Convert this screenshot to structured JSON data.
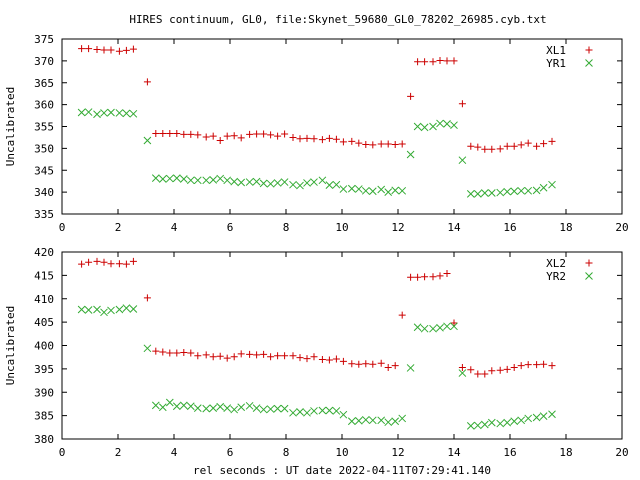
{
  "title": "HIRES continuum, GL0, file:Skynet_59680_GL0_78202_26985.cyb.txt",
  "colors": {
    "series1": "#cc0000",
    "series2": "#33aa33"
  },
  "chart_data": [
    {
      "type": "scatter",
      "ylabel": "Uncalibrated",
      "xlim": [
        0,
        20
      ],
      "ylim": [
        335,
        375
      ],
      "xticks": [
        "0",
        "2",
        "4",
        "6",
        "8",
        "10",
        "12",
        "14",
        "16",
        "18",
        "20"
      ],
      "yticks": [
        "335",
        "340",
        "345",
        "350",
        "355",
        "360",
        "365",
        "370",
        "375"
      ],
      "legend_position": "top-right",
      "series": [
        {
          "name": "XL1",
          "marker": "plus",
          "points": [
            [
              0.7,
              372.8
            ],
            [
              0.95,
              372.8
            ],
            [
              1.25,
              372.6
            ],
            [
              1.5,
              372.5
            ],
            [
              1.75,
              372.5
            ],
            [
              2.05,
              372.2
            ],
            [
              2.3,
              372.4
            ],
            [
              2.55,
              372.7
            ],
            [
              3.05,
              365.2
            ],
            [
              3.35,
              353.4
            ],
            [
              3.6,
              353.4
            ],
            [
              3.85,
              353.4
            ],
            [
              4.1,
              353.4
            ],
            [
              4.35,
              353.2
            ],
            [
              4.6,
              353.2
            ],
            [
              4.85,
              353.1
            ],
            [
              5.15,
              352.6
            ],
            [
              5.4,
              352.8
            ],
            [
              5.65,
              351.8
            ],
            [
              5.9,
              352.8
            ],
            [
              6.15,
              352.9
            ],
            [
              6.4,
              352.4
            ],
            [
              6.7,
              353.2
            ],
            [
              6.95,
              353.3
            ],
            [
              7.2,
              353.3
            ],
            [
              7.45,
              353.1
            ],
            [
              7.7,
              352.8
            ],
            [
              7.95,
              353.3
            ],
            [
              8.25,
              352.5
            ],
            [
              8.5,
              352.2
            ],
            [
              8.75,
              352.3
            ],
            [
              9.0,
              352.2
            ],
            [
              9.3,
              352.0
            ],
            [
              9.55,
              352.3
            ],
            [
              9.8,
              352.1
            ],
            [
              10.05,
              351.5
            ],
            [
              10.35,
              351.6
            ],
            [
              10.6,
              351.2
            ],
            [
              10.85,
              350.9
            ],
            [
              11.1,
              350.8
            ],
            [
              11.4,
              351.0
            ],
            [
              11.65,
              351.0
            ],
            [
              11.9,
              350.9
            ],
            [
              12.15,
              351.0
            ],
            [
              12.45,
              361.9
            ],
            [
              12.7,
              369.8
            ],
            [
              12.95,
              369.8
            ],
            [
              13.25,
              369.8
            ],
            [
              13.5,
              370.1
            ],
            [
              13.75,
              370.0
            ],
            [
              14.0,
              370.0
            ],
            [
              14.3,
              360.2
            ],
            [
              14.6,
              350.5
            ],
            [
              14.85,
              350.3
            ],
            [
              15.1,
              349.8
            ],
            [
              15.35,
              349.8
            ],
            [
              15.65,
              349.9
            ],
            [
              15.9,
              350.5
            ],
            [
              16.15,
              350.5
            ],
            [
              16.4,
              350.8
            ],
            [
              16.65,
              351.2
            ],
            [
              16.95,
              350.5
            ],
            [
              17.2,
              351.1
            ],
            [
              17.5,
              351.6
            ]
          ]
        },
        {
          "name": "YR1",
          "marker": "cross",
          "points": [
            [
              0.7,
              358.2
            ],
            [
              0.95,
              358.3
            ],
            [
              1.25,
              357.8
            ],
            [
              1.5,
              358.1
            ],
            [
              1.75,
              358.2
            ],
            [
              2.05,
              358.1
            ],
            [
              2.3,
              358.0
            ],
            [
              2.55,
              357.9
            ],
            [
              3.05,
              351.8
            ],
            [
              3.35,
              343.2
            ],
            [
              3.6,
              343.0
            ],
            [
              3.85,
              343.1
            ],
            [
              4.1,
              343.2
            ],
            [
              4.35,
              343.0
            ],
            [
              4.6,
              342.7
            ],
            [
              4.85,
              342.7
            ],
            [
              5.15,
              342.7
            ],
            [
              5.4,
              342.8
            ],
            [
              5.65,
              343.1
            ],
            [
              5.9,
              342.7
            ],
            [
              6.15,
              342.4
            ],
            [
              6.4,
              342.2
            ],
            [
              6.7,
              342.3
            ],
            [
              6.95,
              342.4
            ],
            [
              7.2,
              342.0
            ],
            [
              7.45,
              341.9
            ],
            [
              7.7,
              342.1
            ],
            [
              7.95,
              342.3
            ],
            [
              8.25,
              341.7
            ],
            [
              8.5,
              341.5
            ],
            [
              8.75,
              342.1
            ],
            [
              9.0,
              342.3
            ],
            [
              9.3,
              342.7
            ],
            [
              9.55,
              341.6
            ],
            [
              9.8,
              341.7
            ],
            [
              10.05,
              340.7
            ],
            [
              10.35,
              340.8
            ],
            [
              10.6,
              340.7
            ],
            [
              10.85,
              340.3
            ],
            [
              11.1,
              340.2
            ],
            [
              11.4,
              340.6
            ],
            [
              11.65,
              340.0
            ],
            [
              11.9,
              340.4
            ],
            [
              12.15,
              340.3
            ],
            [
              12.45,
              348.6
            ],
            [
              12.7,
              355.0
            ],
            [
              12.95,
              354.8
            ],
            [
              13.25,
              355.0
            ],
            [
              13.5,
              355.7
            ],
            [
              13.75,
              355.6
            ],
            [
              14.0,
              355.3
            ],
            [
              14.3,
              347.3
            ],
            [
              14.6,
              339.6
            ],
            [
              14.85,
              339.6
            ],
            [
              15.1,
              339.8
            ],
            [
              15.35,
              339.8
            ],
            [
              15.65,
              339.9
            ],
            [
              15.9,
              340.1
            ],
            [
              16.15,
              340.2
            ],
            [
              16.4,
              340.3
            ],
            [
              16.65,
              340.3
            ],
            [
              16.95,
              340.4
            ],
            [
              17.2,
              341.0
            ],
            [
              17.5,
              341.7
            ]
          ]
        }
      ]
    },
    {
      "type": "scatter",
      "ylabel": "Uncalibrated",
      "xlabel": "rel seconds : UT date 2022-04-11T07:29:41.140",
      "xlim": [
        0,
        20
      ],
      "ylim": [
        380,
        420
      ],
      "xticks": [
        "0",
        "2",
        "4",
        "6",
        "8",
        "10",
        "12",
        "14",
        "16",
        "18",
        "20"
      ],
      "yticks": [
        "380",
        "385",
        "390",
        "395",
        "400",
        "405",
        "410",
        "415",
        "420"
      ],
      "legend_position": "top-right",
      "series": [
        {
          "name": "XL2",
          "marker": "plus",
          "points": [
            [
              0.7,
              417.4
            ],
            [
              0.95,
              417.8
            ],
            [
              1.25,
              418.0
            ],
            [
              1.5,
              417.8
            ],
            [
              1.75,
              417.5
            ],
            [
              2.05,
              417.5
            ],
            [
              2.3,
              417.4
            ],
            [
              2.55,
              418.0
            ],
            [
              3.05,
              410.2
            ],
            [
              3.35,
              398.8
            ],
            [
              3.6,
              398.6
            ],
            [
              3.85,
              398.4
            ],
            [
              4.1,
              398.4
            ],
            [
              4.35,
              398.5
            ],
            [
              4.6,
              398.4
            ],
            [
              4.85,
              397.8
            ],
            [
              5.15,
              398.0
            ],
            [
              5.4,
              397.6
            ],
            [
              5.65,
              397.7
            ],
            [
              5.9,
              397.3
            ],
            [
              6.15,
              397.6
            ],
            [
              6.4,
              398.2
            ],
            [
              6.7,
              398.1
            ],
            [
              6.95,
              398.0
            ],
            [
              7.2,
              398.1
            ],
            [
              7.45,
              397.6
            ],
            [
              7.7,
              397.8
            ],
            [
              7.95,
              397.8
            ],
            [
              8.25,
              397.8
            ],
            [
              8.5,
              397.4
            ],
            [
              8.75,
              397.2
            ],
            [
              9.0,
              397.6
            ],
            [
              9.3,
              397.0
            ],
            [
              9.55,
              396.9
            ],
            [
              9.8,
              397.1
            ],
            [
              10.05,
              396.6
            ],
            [
              10.35,
              396.1
            ],
            [
              10.6,
              396.0
            ],
            [
              10.85,
              396.1
            ],
            [
              11.1,
              396.0
            ],
            [
              11.4,
              396.2
            ],
            [
              11.65,
              395.3
            ],
            [
              11.9,
              395.7
            ],
            [
              12.15,
              406.5
            ],
            [
              12.45,
              414.6
            ],
            [
              12.7,
              414.6
            ],
            [
              12.95,
              414.7
            ],
            [
              13.25,
              414.7
            ],
            [
              13.5,
              414.9
            ],
            [
              13.75,
              415.4
            ],
            [
              14.0,
              404.8
            ],
            [
              14.3,
              395.3
            ],
            [
              14.6,
              394.8
            ],
            [
              14.85,
              393.9
            ],
            [
              15.1,
              393.9
            ],
            [
              15.35,
              394.6
            ],
            [
              15.65,
              394.7
            ],
            [
              15.9,
              394.9
            ],
            [
              16.15,
              395.3
            ],
            [
              16.4,
              395.7
            ],
            [
              16.65,
              395.9
            ],
            [
              16.95,
              395.9
            ],
            [
              17.2,
              396.0
            ],
            [
              17.5,
              395.7
            ]
          ]
        },
        {
          "name": "YR2",
          "marker": "cross",
          "points": [
            [
              0.7,
              407.7
            ],
            [
              0.95,
              407.6
            ],
            [
              1.25,
              407.7
            ],
            [
              1.5,
              407.1
            ],
            [
              1.75,
              407.5
            ],
            [
              2.05,
              407.7
            ],
            [
              2.3,
              408.0
            ],
            [
              2.55,
              407.8
            ],
            [
              3.05,
              399.4
            ],
            [
              3.35,
              387.2
            ],
            [
              3.6,
              386.8
            ],
            [
              3.85,
              387.8
            ],
            [
              4.1,
              387.0
            ],
            [
              4.35,
              387.2
            ],
            [
              4.6,
              387.0
            ],
            [
              4.85,
              386.6
            ],
            [
              5.15,
              386.5
            ],
            [
              5.4,
              386.6
            ],
            [
              5.65,
              386.9
            ],
            [
              5.9,
              386.6
            ],
            [
              6.15,
              386.3
            ],
            [
              6.4,
              386.8
            ],
            [
              6.7,
              387.1
            ],
            [
              6.95,
              386.6
            ],
            [
              7.2,
              386.3
            ],
            [
              7.45,
              386.4
            ],
            [
              7.7,
              386.5
            ],
            [
              7.95,
              386.5
            ],
            [
              8.25,
              385.6
            ],
            [
              8.5,
              385.8
            ],
            [
              8.75,
              385.6
            ],
            [
              9.0,
              386.0
            ],
            [
              9.3,
              386.1
            ],
            [
              9.55,
              386.1
            ],
            [
              9.8,
              386.0
            ],
            [
              10.05,
              385.2
            ],
            [
              10.35,
              383.8
            ],
            [
              10.6,
              383.9
            ],
            [
              10.85,
              384.1
            ],
            [
              11.1,
              384.0
            ],
            [
              11.4,
              384.0
            ],
            [
              11.65,
              383.6
            ],
            [
              11.9,
              383.8
            ],
            [
              12.15,
              384.4
            ],
            [
              12.45,
              395.2
            ],
            [
              12.7,
              403.9
            ],
            [
              12.95,
              403.6
            ],
            [
              13.25,
              403.6
            ],
            [
              13.5,
              403.8
            ],
            [
              13.75,
              404.1
            ],
            [
              14.0,
              404.1
            ],
            [
              14.3,
              394.1
            ],
            [
              14.6,
              382.8
            ],
            [
              14.85,
              382.9
            ],
            [
              15.1,
              383.1
            ],
            [
              15.35,
              383.5
            ],
            [
              15.65,
              383.3
            ],
            [
              15.9,
              383.5
            ],
            [
              16.15,
              383.8
            ],
            [
              16.4,
              384.0
            ],
            [
              16.65,
              384.4
            ],
            [
              16.95,
              384.6
            ],
            [
              17.2,
              384.9
            ],
            [
              17.5,
              385.3
            ]
          ]
        }
      ]
    }
  ]
}
